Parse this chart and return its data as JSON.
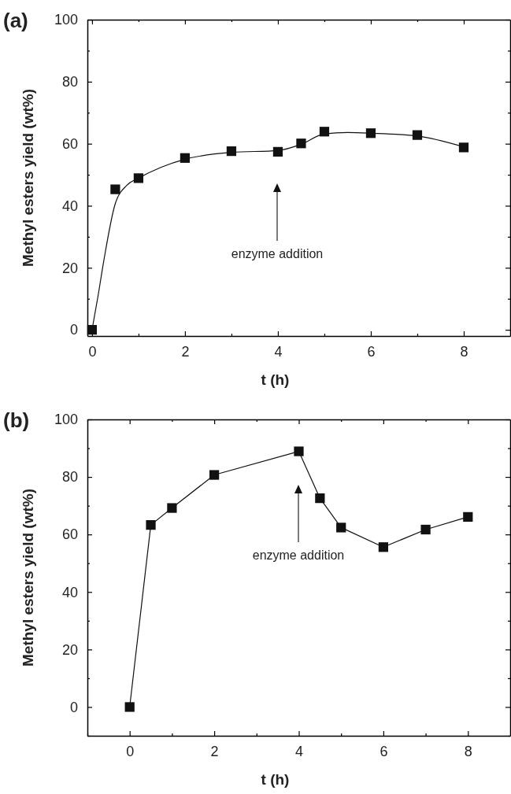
{
  "chart_data": [
    {
      "type": "scatter",
      "title": "(a)",
      "xlabel": "t (h)",
      "ylabel": "Methyl esters yield (wt%)",
      "x": [
        0,
        0.5,
        1,
        2,
        3,
        4,
        4.5,
        5,
        6,
        7,
        8
      ],
      "xlim": [
        -0.1,
        9
      ],
      "ylim": [
        -2,
        100
      ],
      "xticks": [
        0,
        {
          "value": 1,
          "label": null
        },
        2,
        {
          "value": 3,
          "label": null
        },
        4,
        {
          "value": 5,
          "label": null
        },
        6,
        {
          "value": 7,
          "label": null
        },
        8
      ],
      "yticks": [
        0,
        {
          "value": 10,
          "label": null
        },
        20,
        {
          "value": 30,
          "label": null
        },
        40,
        {
          "value": 50,
          "label": null
        },
        60,
        {
          "value": 70,
          "label": null
        },
        80,
        {
          "value": 90,
          "label": null
        },
        100
      ],
      "annotations": [
        "enzyme addition"
      ],
      "series": [
        {
          "marker": "square",
          "color": "#111111",
          "values": [
            0,
            45.3,
            48.9,
            55.4,
            57.6,
            57.4,
            60.1,
            63.9,
            63.4,
            62.8,
            58.8
          ]
        },
        {
          "type": "line",
          "marker": "none",
          "color": "#111111",
          "x": [
            0,
            0.13,
            0.25,
            0.5,
            0.75,
            1,
            1.5,
            2,
            3,
            4,
            4.5,
            5,
            5.5,
            6,
            7,
            8
          ],
          "values": [
            0,
            11,
            22,
            40.7,
            46.6,
            48.9,
            52.5,
            55,
            57.2,
            57.8,
            59.8,
            63.2,
            63.6,
            63.4,
            62.5,
            59
          ]
        }
      ]
    },
    {
      "type": "line",
      "title": "(b)",
      "xlabel": "t (h)",
      "ylabel": "Methyl esters yield (wt%)",
      "x": [
        0,
        0.5,
        1,
        2,
        4,
        4.5,
        5,
        6,
        7,
        8
      ],
      "xlim": [
        -1,
        9
      ],
      "ylim": [
        -10,
        100
      ],
      "xticks": [
        {
          "value": -1,
          "label": null
        },
        0,
        {
          "value": 1,
          "label": null
        },
        2,
        {
          "value": 3,
          "label": null
        },
        4,
        {
          "value": 5,
          "label": null
        },
        6,
        {
          "value": 7,
          "label": null
        },
        8
      ],
      "yticks": [
        {
          "value": -10,
          "label": null
        },
        0,
        {
          "value": 10,
          "label": null
        },
        20,
        {
          "value": 30,
          "label": null
        },
        40,
        {
          "value": 50,
          "label": null
        },
        60,
        {
          "value": 70,
          "label": null
        },
        80,
        {
          "value": 90,
          "label": null
        },
        100
      ],
      "marker": "square",
      "annotations": [
        "enzyme addition"
      ],
      "series": [
        {
          "color": "#111111",
          "values": [
            0,
            63.3,
            69.2,
            80.7,
            88.9,
            72.6,
            62.4,
            55.6,
            61.7,
            66.1
          ]
        }
      ]
    }
  ]
}
